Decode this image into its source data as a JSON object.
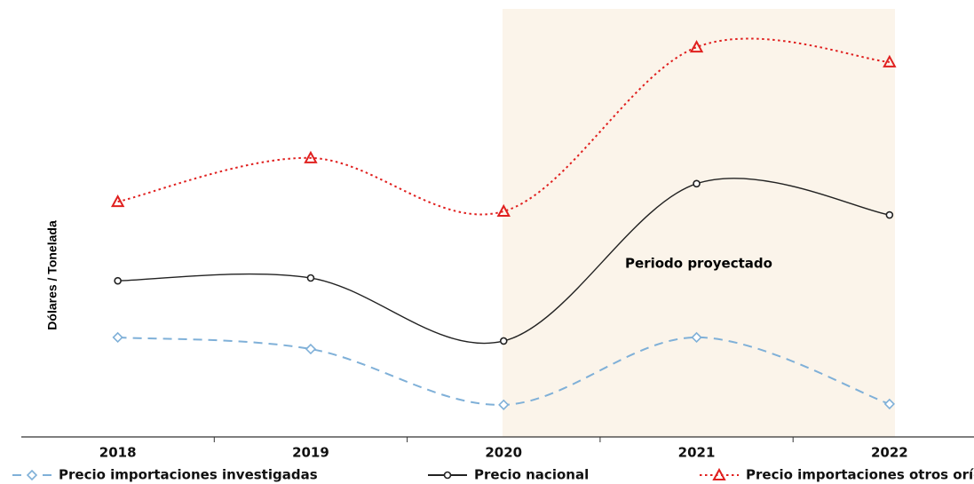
{
  "chart_data": {
    "type": "line",
    "y_label": "Dólares / Tonelada",
    "annotation": "Periodo proyectado",
    "categories": [
      "2018",
      "2019",
      "2020",
      "2021",
      "2022"
    ],
    "ylim": [
      0,
      100
    ],
    "series": [
      {
        "name": "Precio importaciones investigadas",
        "color": "#7fb0d8",
        "line_style": "dashed",
        "marker": "diamond",
        "values": [
          24.8,
          21.9,
          8.0,
          24.8,
          8.2
        ]
      },
      {
        "name": "Precio nacional",
        "color": "#222222",
        "line_style": "solid",
        "marker": "circle",
        "values": [
          38.9,
          39.6,
          23.9,
          63.1,
          55.3
        ]
      },
      {
        "name": "Precio importaciones otros orígenes",
        "color": "#e0201f",
        "line_style": "dotted",
        "marker": "triangle",
        "values": [
          58.6,
          69.5,
          56.2,
          97.1,
          93.4
        ]
      }
    ]
  }
}
